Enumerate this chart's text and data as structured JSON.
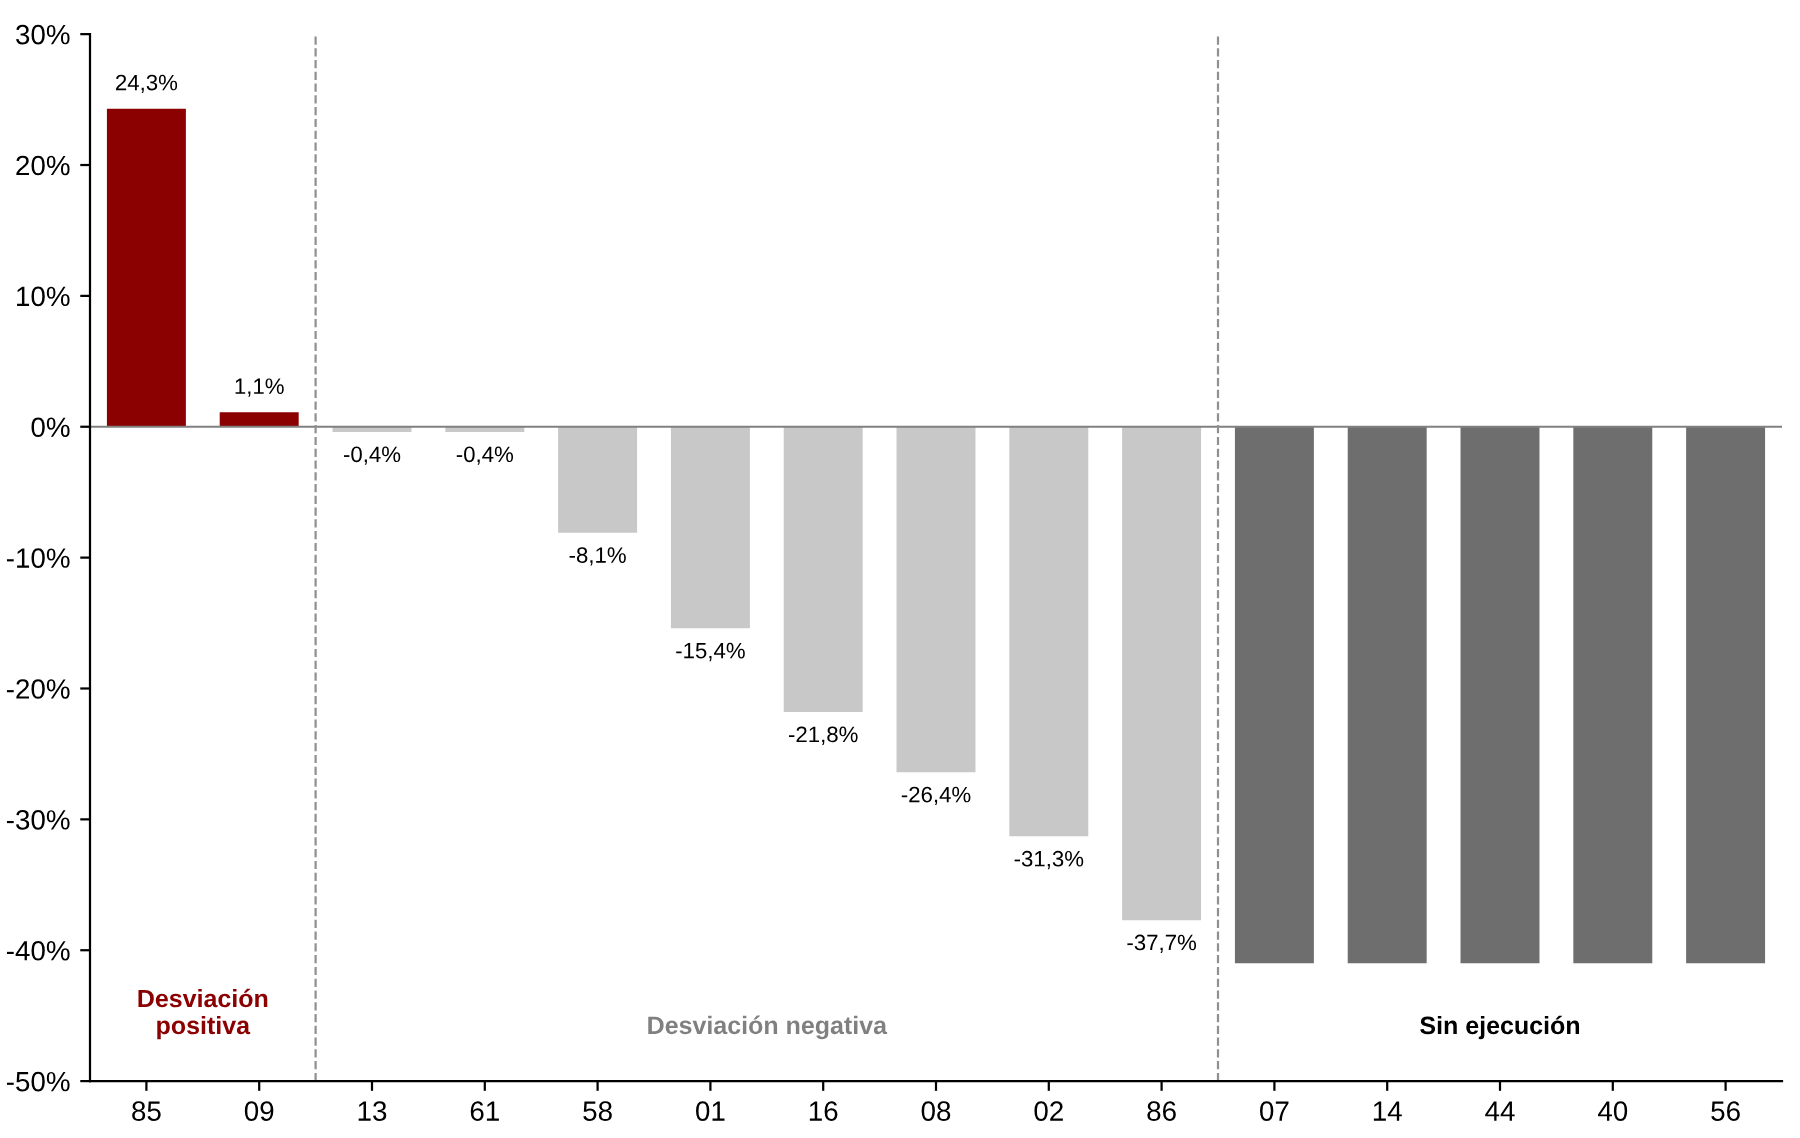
{
  "chart_data": {
    "type": "bar",
    "categories": [
      "85",
      "09",
      "13",
      "61",
      "58",
      "01",
      "16",
      "08",
      "02",
      "86",
      "07",
      "14",
      "44",
      "40",
      "56"
    ],
    "values": [
      24.3,
      1.1,
      -0.4,
      -0.4,
      -8.1,
      -15.4,
      -21.8,
      -26.4,
      -31.3,
      -37.7,
      -41,
      -41,
      -41,
      -41,
      -41
    ],
    "colors": [
      "#8b0000",
      "#8b0000",
      "#c8c8c8",
      "#c8c8c8",
      "#c8c8c8",
      "#c8c8c8",
      "#c8c8c8",
      "#c8c8c8",
      "#c8c8c8",
      "#c8c8c8",
      "#6e6e6e",
      "#6e6e6e",
      "#6e6e6e",
      "#6e6e6e",
      "#6e6e6e"
    ],
    "value_labels": [
      "24,3%",
      "1,1%",
      "-0,4%",
      "-0,4%",
      "-8,1%",
      "-15,4%",
      "-21,8%",
      "-26,4%",
      "-31,3%",
      "-37,7%",
      null,
      null,
      null,
      null,
      null
    ],
    "ylim": [
      -50,
      30
    ],
    "yticks": [
      {
        "value": 30,
        "label": "30%"
      },
      {
        "value": 20,
        "label": "20%"
      },
      {
        "value": 10,
        "label": "10%"
      },
      {
        "value": 0,
        "label": "0%"
      },
      {
        "value": -10,
        "label": "-10%"
      },
      {
        "value": -20,
        "label": "-20%"
      },
      {
        "value": -30,
        "label": "-30%"
      },
      {
        "value": -40,
        "label": "-40%"
      },
      {
        "value": -50,
        "label": "-50%"
      }
    ],
    "annotations": [
      "Desviación\npositiva",
      "Desviación negativa",
      "Sin ejecución"
    ],
    "grid": false,
    "legend": false
  }
}
